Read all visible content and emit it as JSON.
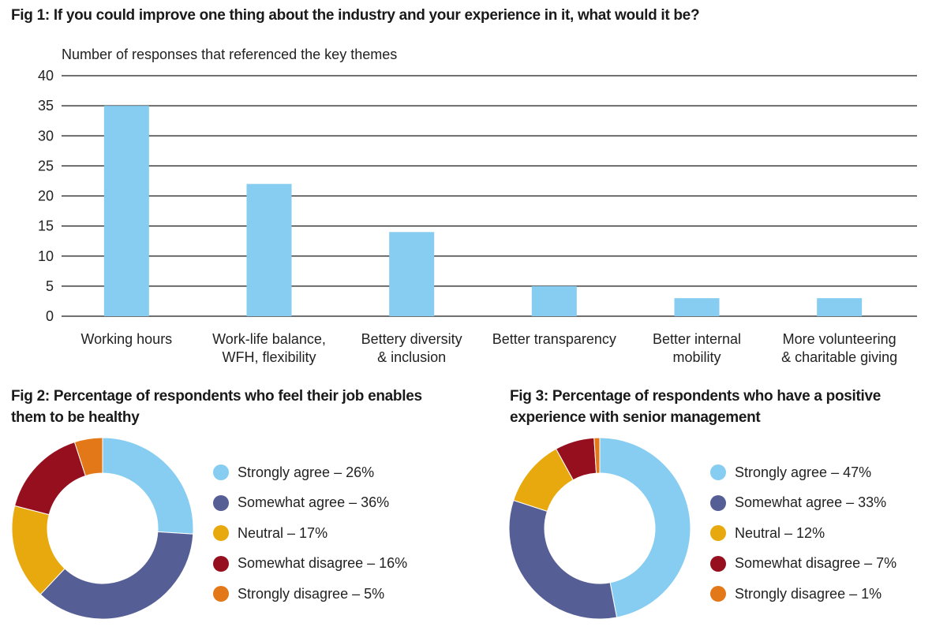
{
  "chart_data": [
    {
      "type": "bar",
      "title": "Fig 1: If you could improve one thing about the industry and your experience in it, what would it be?",
      "ylabel": "Number of responses that referenced the key themes",
      "xlabel": "",
      "categories": [
        [
          "Working hours"
        ],
        [
          "Work-life balance,",
          "WFH, flexibility"
        ],
        [
          "Bettery diversity",
          "& inclusion"
        ],
        [
          "Better transparency"
        ],
        [
          "Better internal",
          "mobility"
        ],
        [
          "More volunteering",
          "& charitable giving"
        ]
      ],
      "values": [
        35,
        22,
        14,
        5,
        3,
        3
      ],
      "ylim": [
        0,
        40
      ],
      "yticks": [
        0,
        5,
        10,
        15,
        20,
        25,
        30,
        35,
        40
      ],
      "grid": true,
      "color": "#86CDF1"
    },
    {
      "type": "pie",
      "title": "Fig 2: Percentage of respondents who feel their job enables them to be healthy",
      "slices": [
        {
          "label": "Strongly agree",
          "value": 26,
          "color": "#86CDF1"
        },
        {
          "label": "Somewhat agree",
          "value": 36,
          "color": "#565F95"
        },
        {
          "label": "Neutral",
          "value": 17,
          "color": "#E8A90E"
        },
        {
          "label": "Somewhat disagree",
          "value": 16,
          "color": "#960F1E"
        },
        {
          "label": "Strongly disagree",
          "value": 5,
          "color": "#E27817"
        }
      ]
    },
    {
      "type": "pie",
      "title": "Fig 3: Percentage of respondents who have a positive experience with senior management",
      "slices": [
        {
          "label": "Strongly agree",
          "value": 47,
          "color": "#86CDF1"
        },
        {
          "label": "Somewhat agree",
          "value": 33,
          "color": "#565F95"
        },
        {
          "label": "Neutral",
          "value": 12,
          "color": "#E8A90E"
        },
        {
          "label": "Somewhat disagree",
          "value": 7,
          "color": "#960F1E"
        },
        {
          "label": "Strongly disagree",
          "value": 1,
          "color": "#E27817"
        }
      ]
    }
  ]
}
